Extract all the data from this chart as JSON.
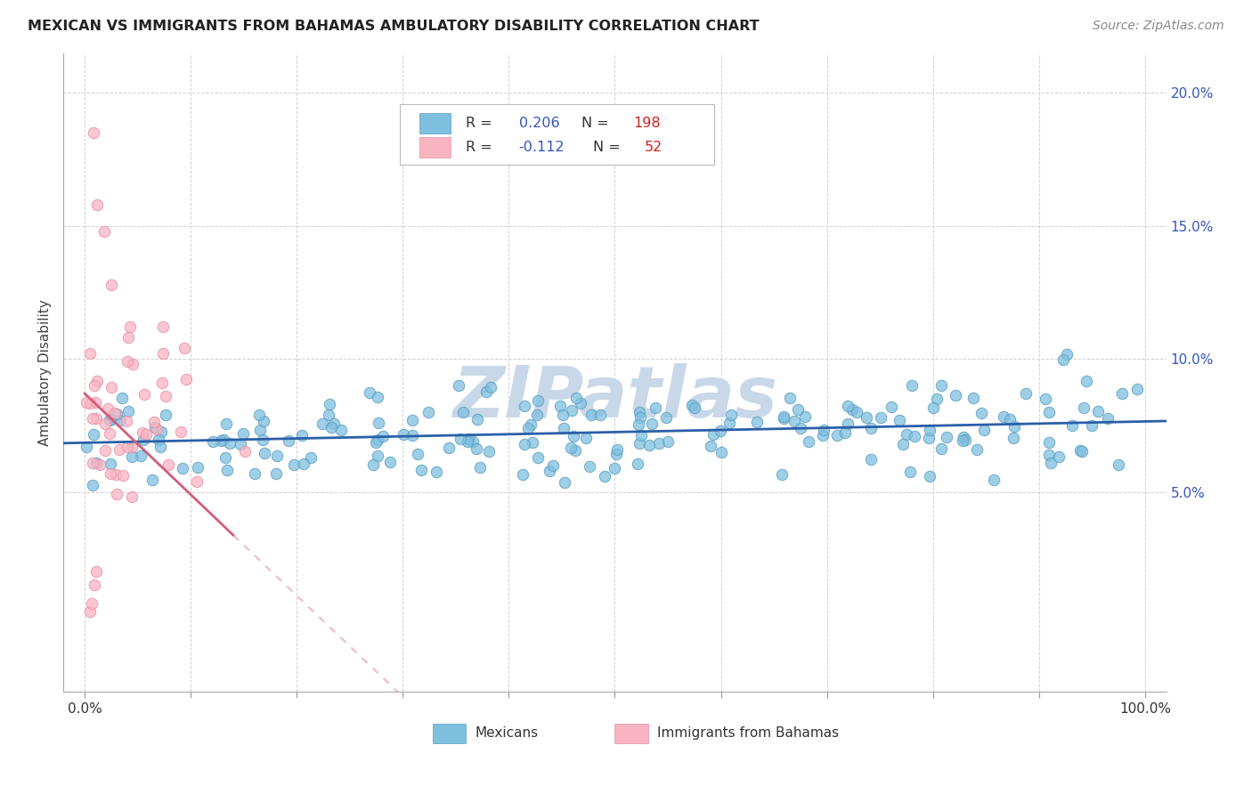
{
  "title": "MEXICAN VS IMMIGRANTS FROM BAHAMAS AMBULATORY DISABILITY CORRELATION CHART",
  "source": "Source: ZipAtlas.com",
  "ylabel": "Ambulatory Disability",
  "xlim": [
    -0.02,
    1.02
  ],
  "ylim": [
    -0.025,
    0.215
  ],
  "ytick_vals": [
    0.05,
    0.1,
    0.15,
    0.2
  ],
  "ytick_labels": [
    "5.0%",
    "10.0%",
    "15.0%",
    "20.0%"
  ],
  "blue_color": "#7fbfdf",
  "blue_edge_color": "#5a9fc0",
  "pink_color": "#f9b4c2",
  "pink_edge_color": "#e890a5",
  "blue_line_color": "#2b5fa8",
  "pink_line_color": "#d45c7a",
  "pink_dash_color": "#f0b8c8",
  "R_blue": 0.206,
  "N_blue": 198,
  "R_pink": -0.112,
  "N_pink": 52,
  "legend_text_color": "#333333",
  "legend_R_color": "#3355bb",
  "legend_N_color": "#cc2222",
  "right_axis_color": "#3355bb",
  "watermark_color": "#c8d8e8",
  "watermark_text": "ZIPatlas",
  "grid_color": "#cccccc",
  "title_color": "#222222",
  "source_color": "#888888",
  "seed_blue": 7,
  "seed_pink": 13,
  "blue_intercept": 0.0685,
  "blue_slope": 0.008,
  "pink_intercept": 0.087,
  "pink_slope": -0.38
}
